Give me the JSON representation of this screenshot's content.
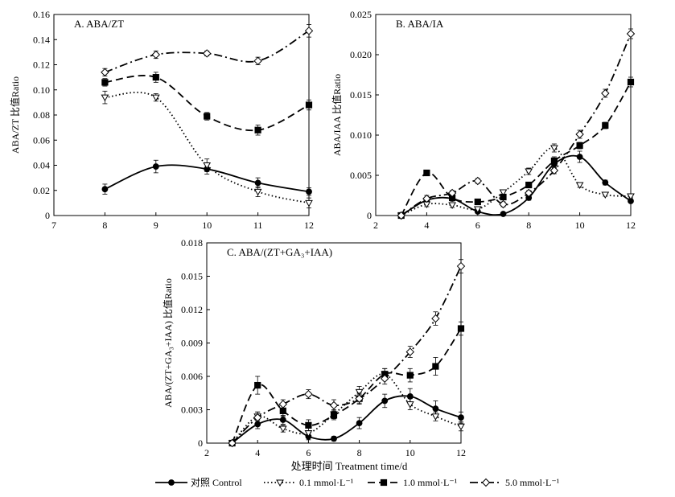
{
  "x_axis_label": "处理时间 Treatment time/d",
  "series_styles": [
    {
      "name": "对照 Control",
      "marker": "circle-filled",
      "dash": "solid",
      "color": "#000000"
    },
    {
      "name": "0.1 mmol·L⁻¹",
      "marker": "triangle-down-open",
      "dash": "dotted",
      "color": "#000000"
    },
    {
      "name": "1.0 mmol·L⁻¹",
      "marker": "square-filled",
      "dash": "dashed",
      "color": "#000000"
    },
    {
      "name": "5.0 mmol·L⁻¹",
      "marker": "diamond-open",
      "dash": "dash-dot",
      "color": "#000000"
    }
  ],
  "chart_data": [
    {
      "type": "line",
      "title": "A. ABA/ZT",
      "xlabel": "",
      "ylabel": "ABA/ZT 比值Ratio",
      "xlim": [
        7,
        12
      ],
      "ylim": [
        0,
        0.16
      ],
      "xticks": [
        "7",
        "8",
        "9",
        "10",
        "11",
        "12"
      ],
      "yticks": [
        "0",
        "0.02",
        "0.04",
        "0.06",
        "0.08",
        "0.10",
        "0.12",
        "0.14",
        "0.16"
      ],
      "x": [
        8,
        9,
        10,
        11,
        12
      ],
      "series": [
        {
          "name": "对照 Control",
          "values": [
            0.021,
            0.039,
            0.037,
            0.026,
            0.019
          ],
          "errors": [
            0.004,
            0.005,
            0.004,
            0.004,
            0.003
          ]
        },
        {
          "name": "0.1 mmol·L⁻¹",
          "values": [
            0.094,
            0.094,
            0.04,
            0.019,
            0.01
          ],
          "errors": [
            0.005,
            0.003,
            0.005,
            0.004,
            0.004
          ]
        },
        {
          "name": "1.0 mmol·L⁻¹",
          "values": [
            0.106,
            0.11,
            0.079,
            0.068,
            0.088
          ],
          "errors": [
            0.003,
            0.004,
            0.003,
            0.004,
            0.004
          ]
        },
        {
          "name": "5.0 mmol·L⁻¹",
          "values": [
            0.114,
            0.128,
            0.129,
            0.123,
            0.147
          ],
          "errors": [
            0.003,
            0.003,
            0.002,
            0.003,
            0.005
          ]
        }
      ]
    },
    {
      "type": "line",
      "title": "B. ABA/IA",
      "xlabel": "",
      "ylabel": "ABA/IAA 比值Ratio",
      "xlim": [
        2,
        12
      ],
      "ylim": [
        0,
        0.025
      ],
      "xticks": [
        "2",
        "4",
        "6",
        "8",
        "10",
        "12"
      ],
      "yticks": [
        "0",
        "0.005",
        "0.010",
        "0.015",
        "0.020",
        "0.025"
      ],
      "x": [
        3,
        4,
        5,
        6,
        7,
        8,
        9,
        10,
        11,
        12
      ],
      "series": [
        {
          "name": "对照 Control",
          "values": [
            0,
            0.0019,
            0.0021,
            0.0005,
            0.0002,
            0.0022,
            0.0064,
            0.0073,
            0.0041,
            0.0018
          ],
          "errors": [
            0,
            0.0003,
            0.0003,
            0.0002,
            0.0002,
            0.0003,
            0.0005,
            0.0007,
            0.0003,
            0.0002
          ]
        },
        {
          "name": "0.1 mmol·L⁻¹",
          "values": [
            0,
            0.0014,
            0.0013,
            0.0008,
            0.0029,
            0.0055,
            0.0084,
            0.0038,
            0.0026,
            0.0024
          ],
          "errors": [
            0,
            0.0003,
            0.0003,
            0.0003,
            0.0003,
            0.0004,
            0.0005,
            0.0003,
            0.0002,
            0.0002
          ]
        },
        {
          "name": "1.0 mmol·L⁻¹",
          "values": [
            0,
            0.0053,
            0.0022,
            0.0017,
            0.0023,
            0.0038,
            0.0068,
            0.0087,
            0.0112,
            0.0166
          ],
          "errors": [
            0,
            0.0003,
            0.0003,
            0.0002,
            0.0003,
            0.0003,
            0.0005,
            0.0004,
            0.0004,
            0.0006
          ]
        },
        {
          "name": "5.0 mmol·L⁻¹",
          "values": [
            0,
            0.0021,
            0.0028,
            0.0043,
            0.0014,
            0.0028,
            0.0056,
            0.0101,
            0.0152,
            0.0226
          ],
          "errors": [
            0,
            0.0004,
            0.0003,
            0.0003,
            0.0003,
            0.0003,
            0.0004,
            0.0005,
            0.0005,
            0.0006
          ]
        }
      ]
    },
    {
      "type": "line",
      "title": "C. ABA/(ZT+GA₃+IAA)",
      "xlabel": "处理时间 Treatment time/d",
      "ylabel": "ABA/(ZT+GA₃+IAA) 比值Ratio",
      "xlim": [
        2,
        12
      ],
      "ylim": [
        0,
        0.018
      ],
      "xticks": [
        "2",
        "4",
        "6",
        "8",
        "10",
        "12"
      ],
      "yticks": [
        "0",
        "0.003",
        "0.006",
        "0.009",
        "0.012",
        "0.015",
        "0.018"
      ],
      "x": [
        3,
        4,
        5,
        6,
        7,
        8,
        9,
        10,
        11,
        12
      ],
      "series": [
        {
          "name": "对照 Control",
          "values": [
            0,
            0.0017,
            0.0021,
            0.0006,
            0.0004,
            0.0018,
            0.0038,
            0.0042,
            0.0031,
            0.0023
          ],
          "errors": [
            0,
            0.0004,
            0.0004,
            0.0003,
            0.0002,
            0.0005,
            0.0006,
            0.0007,
            0.0007,
            0.0005
          ]
        },
        {
          "name": "0.1 mmol·L⁻¹",
          "values": [
            0,
            0.0024,
            0.0013,
            0.0009,
            0.0026,
            0.0046,
            0.0062,
            0.0035,
            0.0024,
            0.0015
          ],
          "errors": [
            0,
            0.0004,
            0.0003,
            0.0002,
            0.0004,
            0.0005,
            0.0005,
            0.0005,
            0.0004,
            0.0004
          ]
        },
        {
          "name": "1.0 mmol·L⁻¹",
          "values": [
            0,
            0.0052,
            0.0029,
            0.0016,
            0.0025,
            0.004,
            0.0062,
            0.0061,
            0.0069,
            0.0103
          ],
          "errors": [
            0,
            0.0008,
            0.0005,
            0.0005,
            0.0004,
            0.0005,
            0.0005,
            0.0006,
            0.0008,
            0.0006
          ]
        },
        {
          "name": "5.0 mmol·L⁻¹",
          "values": [
            0,
            0.0023,
            0.0035,
            0.0044,
            0.0034,
            0.004,
            0.0058,
            0.0082,
            0.0112,
            0.0159
          ],
          "errors": [
            0,
            0.0005,
            0.0004,
            0.0004,
            0.0005,
            0.0004,
            0.0005,
            0.0005,
            0.0006,
            0.0006
          ]
        }
      ]
    }
  ]
}
